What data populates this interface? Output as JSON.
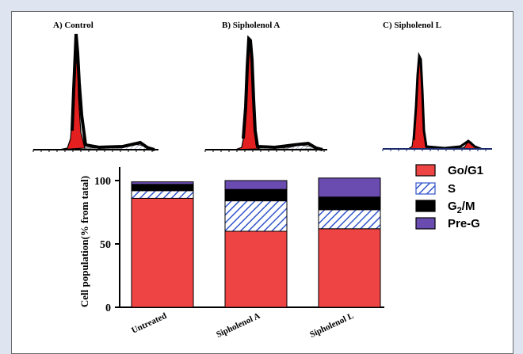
{
  "colors": {
    "background": "#dfe4f1",
    "go_g1": "#ef4444",
    "s_hatch": "#3355cc",
    "g2m": "#000000",
    "preg": "#6a4cb0",
    "histogram_fill": "#e41f1f"
  },
  "panel_titles": [
    "A) Control",
    "B) Sipholenol A",
    "C)  Sipholenol L"
  ],
  "chart_data": {
    "type": "bar",
    "stacked": true,
    "categories": [
      "Untreated",
      "Sipholenol A",
      "Sipholenol L"
    ],
    "series": [
      {
        "name": "Go/G1",
        "color": "#ef4444",
        "pattern": "solid",
        "values": [
          86,
          60,
          62
        ]
      },
      {
        "name": "S",
        "color": "#3355cc",
        "pattern": "hatch",
        "values": [
          6,
          24,
          15
        ]
      },
      {
        "name": "G2/M",
        "color": "#000000",
        "pattern": "solid",
        "values": [
          5,
          9,
          10
        ]
      },
      {
        "name": "Pre-G",
        "color": "#6a4cb0",
        "pattern": "solid",
        "values": [
          2,
          7,
          15
        ]
      }
    ],
    "ylabel": "Cell population(% from tatal)",
    "ylim": [
      0,
      100
    ],
    "yticks": [
      0,
      50,
      100
    ],
    "legend_position": "right",
    "grid": false
  },
  "legend_display": [
    {
      "main": "Go/G1",
      "sub": "",
      "tail": ""
    },
    {
      "main": "S",
      "sub": "",
      "tail": ""
    },
    {
      "main": "G",
      "sub": "2",
      "tail": "/M"
    },
    {
      "main": "Pre-G",
      "sub": "",
      "tail": ""
    }
  ]
}
